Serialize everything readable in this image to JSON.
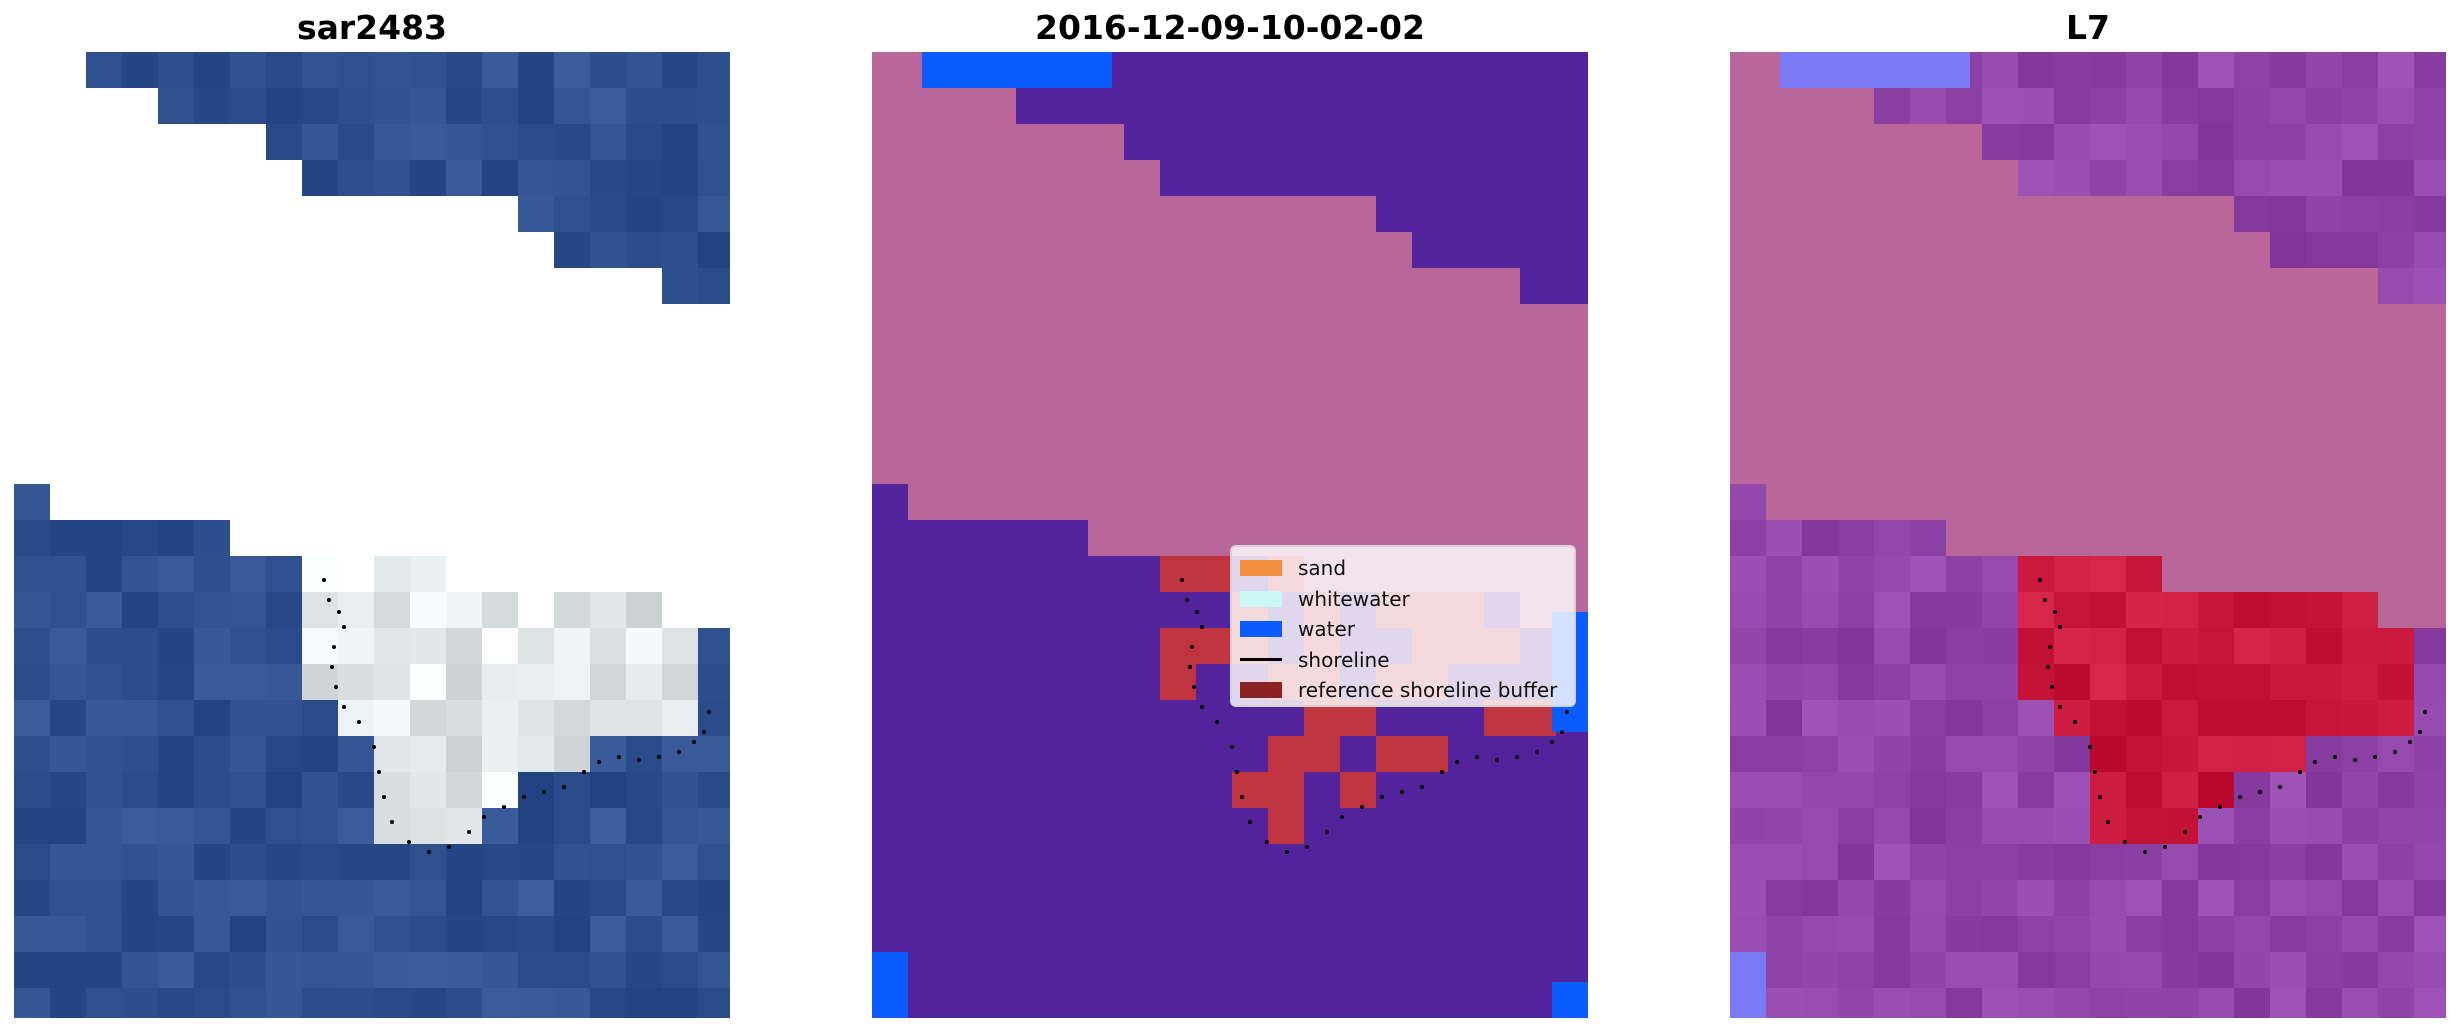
{
  "panels": [
    {
      "title": "sar2483"
    },
    {
      "title": "2016-12-09-10-02-02"
    },
    {
      "title": "L7"
    }
  ],
  "legend": {
    "items": [
      {
        "label": "sand",
        "kind": "patch",
        "color": "#f28e3f"
      },
      {
        "label": "whitewater",
        "kind": "patch",
        "color": "#ccf7f7"
      },
      {
        "label": "water",
        "kind": "patch",
        "color": "#0a5cff"
      },
      {
        "label": "shoreline",
        "kind": "line",
        "color": "#000000"
      },
      {
        "label": "reference shoreline buffer",
        "kind": "patch",
        "color": "#8b2323"
      }
    ]
  },
  "colors": {
    "ocean_rgb": "#2f4f8f",
    "foam_rgb": "#e8eef0",
    "classified_water": "#52239b",
    "cloud_mask": "#b9669a",
    "water_bright": "#0a5cff",
    "buffer_red": "#c0343f",
    "index_purple": "#8f45a8",
    "index_red": "#c8193c",
    "index_blue": "#7a7af5"
  }
}
